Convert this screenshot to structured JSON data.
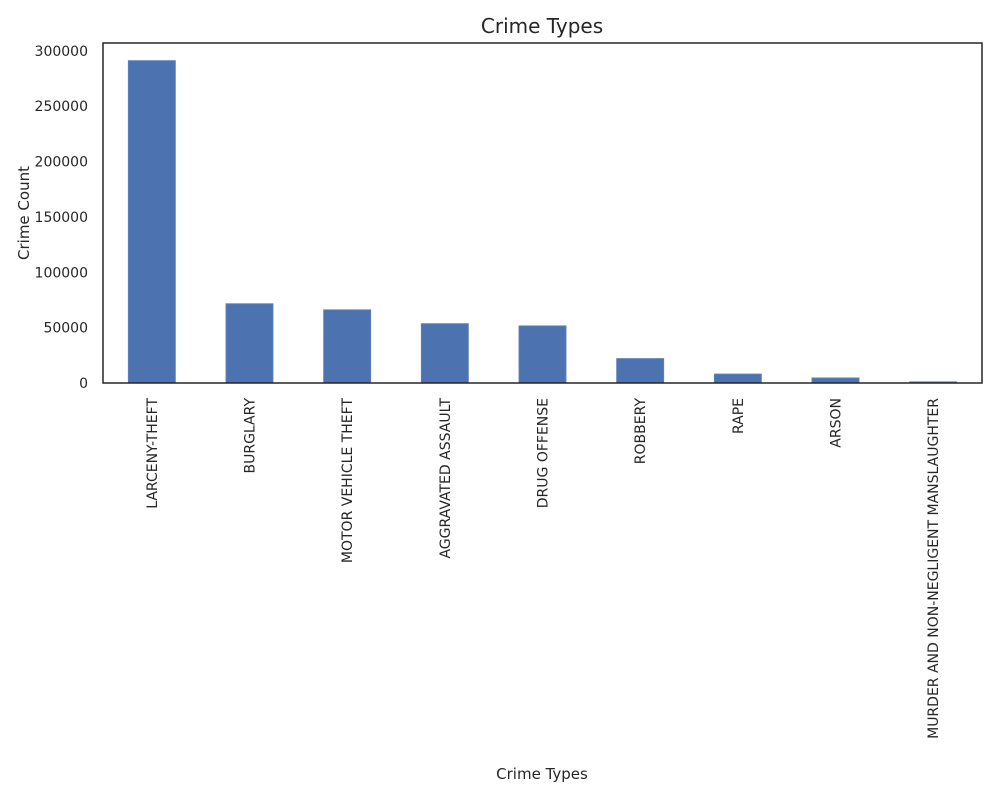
{
  "chart_data": {
    "type": "bar",
    "title": "Crime Types",
    "xlabel": "Crime Types",
    "ylabel": "Crime Count",
    "categories": [
      "LARCENY-THEFT",
      "BURGLARY",
      "MOTOR VEHICLE THEFT",
      "AGGRAVATED ASSAULT",
      "DRUG OFFENSE",
      "ROBBERY",
      "RAPE",
      "ARSON",
      "MURDER AND NON-NEGLIGENT MANSLAUGHTER"
    ],
    "values": [
      291000,
      71500,
      66000,
      53500,
      51500,
      22000,
      8000,
      4500,
      1000
    ],
    "ylim": [
      0,
      307000
    ],
    "yticks": [
      0,
      50000,
      100000,
      150000,
      200000,
      250000,
      300000
    ],
    "ytick_labels": [
      "0",
      "50000",
      "100000",
      "150000",
      "200000",
      "250000",
      "300000"
    ],
    "grid": false,
    "bar_color": "#4c72b0",
    "edge_color": "#5b7fb8"
  }
}
